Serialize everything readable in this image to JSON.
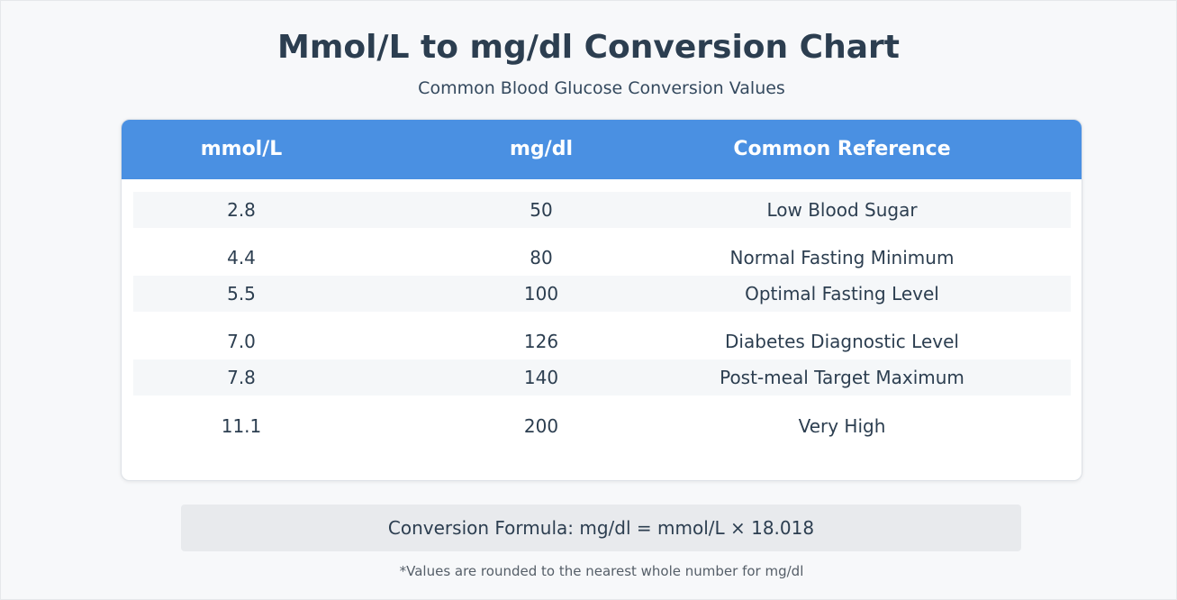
{
  "header": {
    "title": "Mmol/L to mg/dl Conversion Chart",
    "subtitle": "Common Blood Glucose Conversion Values"
  },
  "table": {
    "columns": [
      "mmol/L",
      "mg/dl",
      "Common Reference"
    ],
    "rows": [
      [
        "2.8",
        "50",
        "Low Blood Sugar"
      ],
      [
        "4.4",
        "80",
        "Normal Fasting Minimum"
      ],
      [
        "5.5",
        "100",
        "Optimal Fasting Level"
      ],
      [
        "7.0",
        "126",
        "Diabetes Diagnostic Level"
      ],
      [
        "7.8",
        "140",
        "Post-meal Target Maximum"
      ],
      [
        "11.1",
        "200",
        "Very High"
      ]
    ]
  },
  "formula": "Conversion Formula: mg/dl = mmol/L × 18.018",
  "footnote": "*Values are rounded to the nearest whole number for mg/dl",
  "colors": {
    "header_bg": "#4a90e2",
    "page_bg": "#f7f8fa",
    "text": "#2c3e50"
  }
}
